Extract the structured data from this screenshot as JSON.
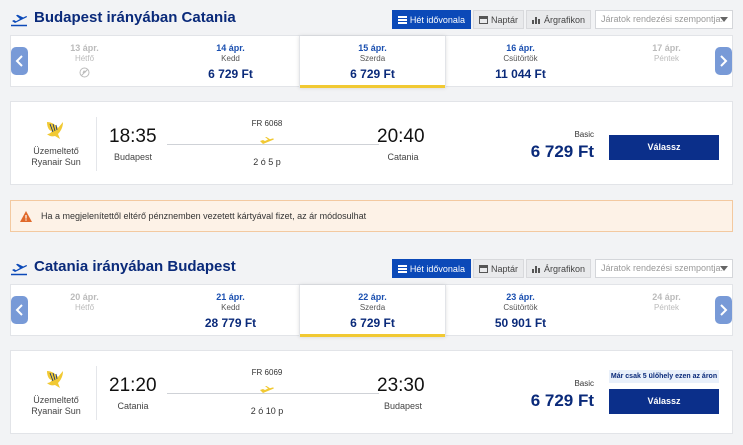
{
  "sections": [
    {
      "title": "Budapest irányában Catania",
      "view_options": [
        "Hét idővonala",
        "Naptár",
        "Árgrafikon"
      ],
      "sort_placeholder": "Járatok rendezési szempontja:",
      "dates": [
        {
          "date": "13 ápr.",
          "weekday": "Hétfő",
          "price": "",
          "state": "disabled"
        },
        {
          "date": "14 ápr.",
          "weekday": "Kedd",
          "price": "6 729 Ft",
          "state": "normal"
        },
        {
          "date": "15 ápr.",
          "weekday": "Szerda",
          "price": "6 729 Ft",
          "state": "selected"
        },
        {
          "date": "16 ápr.",
          "weekday": "Csütörtök",
          "price": "11 044 Ft",
          "state": "normal"
        },
        {
          "date": "17 ápr.",
          "weekday": "Péntek",
          "price": "",
          "state": "disabled"
        }
      ],
      "flight": {
        "operator_label": "Üzemeltető",
        "operator": "Ryanair Sun",
        "departure_time": "18:35",
        "departure_city": "Budapest",
        "flight_number": "FR 6068",
        "duration": "2 ó 5 p",
        "arrival_time": "20:40",
        "arrival_city": "Catania",
        "fare_type": "Basic",
        "price": "6 729 Ft",
        "select_label": "Válassz",
        "seats_badge": ""
      }
    },
    {
      "title": "Catania irányában Budapest",
      "view_options": [
        "Hét idővonala",
        "Naptár",
        "Árgrafikon"
      ],
      "sort_placeholder": "Járatok rendezési szempontja:",
      "dates": [
        {
          "date": "20 ápr.",
          "weekday": "Hétfő",
          "price": "",
          "state": "disabled"
        },
        {
          "date": "21 ápr.",
          "weekday": "Kedd",
          "price": "28 779 Ft",
          "state": "normal"
        },
        {
          "date": "22 ápr.",
          "weekday": "Szerda",
          "price": "6 729 Ft",
          "state": "selected"
        },
        {
          "date": "23 ápr.",
          "weekday": "Csütörtök",
          "price": "50 901 Ft",
          "state": "normal"
        },
        {
          "date": "24 ápr.",
          "weekday": "Péntek",
          "price": "",
          "state": "disabled"
        }
      ],
      "flight": {
        "operator_label": "Üzemeltető",
        "operator": "Ryanair Sun",
        "departure_time": "21:20",
        "departure_city": "Catania",
        "flight_number": "FR 6069",
        "duration": "2 ó 10 p",
        "arrival_time": "23:30",
        "arrival_city": "Budapest",
        "fare_type": "Basic",
        "price": "6 729 Ft",
        "select_label": "Válassz",
        "seats_badge": "Már csak 5 ülőhely ezen az áron"
      }
    }
  ],
  "warning": {
    "text": "Ha a megjelenítettől eltérő pénznemben vezetett kártyával fizet, az ár módosulhat"
  },
  "icons": {
    "section_plane": "plane-departure-icon",
    "nav_left": "chevron-left-icon",
    "nav_right": "chevron-right-icon",
    "no_flight": "no-flight-icon",
    "airline": "ryanair-harp-logo",
    "route": "plane-icon",
    "warning": "warning-triangle-icon",
    "calendar": "calendar-icon",
    "chart": "bar-chart-icon"
  },
  "colors": {
    "primary": "#0b49b8",
    "title": "#0a2a7a",
    "accent_yellow": "#f1c933",
    "button": "#0b2f8a",
    "warning_bg": "#fdf2e7",
    "warning_icon": "#e0692a"
  }
}
